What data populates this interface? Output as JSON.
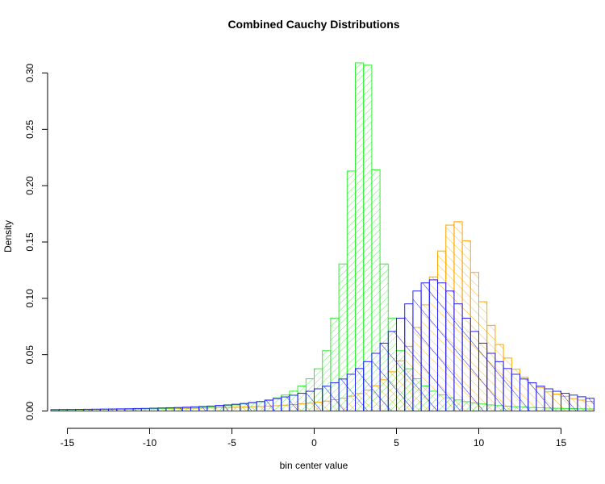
{
  "chart_data": {
    "type": "histogram",
    "title": "Combined Cauchy Distributions",
    "xlabel": "bin center value",
    "ylabel": "Density",
    "xlim": [
      -16.2,
      16.2
    ],
    "ylim": [
      0,
      0.31
    ],
    "x_ticks": [
      -15,
      -10,
      -5,
      0,
      5,
      10,
      15
    ],
    "y_ticks": [
      0.0,
      0.05,
      0.1,
      0.15,
      0.2,
      0.25,
      0.3
    ],
    "y_tick_labels": [
      "0.00",
      "0.05",
      "0.10",
      "0.15",
      "0.20",
      "0.25",
      "0.30"
    ],
    "x_tick_labels": [
      "-15",
      "-10",
      "-5",
      "0",
      "5",
      "10",
      "15"
    ],
    "bin_width": 0.5,
    "grid": false,
    "legend": "none",
    "series": [
      {
        "color": "#ffa500",
        "fill_pattern": "diagonal-hatch-backslash",
        "bins_start": -16,
        "values": [
          0.0012,
          0.0012,
          0.0013,
          0.0013,
          0.0013,
          0.0014,
          0.0015,
          0.0015,
          0.0016,
          0.0016,
          0.0017,
          0.0018,
          0.0019,
          0.002,
          0.0021,
          0.0022,
          0.0023,
          0.0024,
          0.0026,
          0.0027,
          0.0029,
          0.0031,
          0.0033,
          0.0035,
          0.0038,
          0.004,
          0.0044,
          0.0047,
          0.0052,
          0.0057,
          0.0063,
          0.007,
          0.0078,
          0.0088,
          0.01,
          0.0114,
          0.0132,
          0.0155,
          0.0185,
          0.0224,
          0.0277,
          0.0348,
          0.0445,
          0.0574,
          0.0742,
          0.0942,
          0.119,
          0.142,
          0.165,
          0.168,
          0.151,
          0.123,
          0.097,
          0.076,
          0.059,
          0.047,
          0.037,
          0.03,
          0.025,
          0.021,
          0.017,
          0.015,
          0.013,
          0.011,
          0.0097,
          0.0085,
          0.0075
        ]
      },
      {
        "color": "#33ee33",
        "fill_pattern": "diagonal-hatch-slash",
        "bins_start": -16,
        "values": [
          0.001,
          0.0011,
          0.0011,
          0.0012,
          0.0013,
          0.0013,
          0.0014,
          0.0015,
          0.0016,
          0.0017,
          0.0018,
          0.0019,
          0.0021,
          0.0022,
          0.0024,
          0.0026,
          0.0029,
          0.0031,
          0.0035,
          0.0038,
          0.0043,
          0.0048,
          0.0054,
          0.0062,
          0.0071,
          0.0083,
          0.0098,
          0.0117,
          0.0142,
          0.0176,
          0.0222,
          0.0286,
          0.0375,
          0.0535,
          0.0825,
          0.1305,
          0.213,
          0.309,
          0.307,
          0.214,
          0.1305,
          0.0825,
          0.0535,
          0.0375,
          0.0286,
          0.0222,
          0.0176,
          0.0142,
          0.0117,
          0.0098,
          0.0083,
          0.0071,
          0.0062,
          0.0054,
          0.0048,
          0.0043,
          0.0038,
          0.0035,
          0.0031,
          0.0029,
          0.0026,
          0.0024,
          0.0022,
          0.0021,
          0.0019,
          0.0018,
          0.0017
        ]
      },
      {
        "color": "#2222ff",
        "fill_pattern": "diagonal-hatch-backslash-wide",
        "bins_start": -16,
        "values": [
          0.0012,
          0.0013,
          0.0013,
          0.0014,
          0.0015,
          0.0016,
          0.0017,
          0.0018,
          0.0019,
          0.002,
          0.0022,
          0.0023,
          0.0025,
          0.0027,
          0.0029,
          0.0031,
          0.0034,
          0.0037,
          0.004,
          0.0044,
          0.0049,
          0.0054,
          0.006,
          0.0067,
          0.0075,
          0.0084,
          0.0096,
          0.011,
          0.0125,
          0.014,
          0.0157,
          0.0175,
          0.0197,
          0.022,
          0.025,
          0.0284,
          0.0326,
          0.0377,
          0.0438,
          0.0512,
          0.0602,
          0.0706,
          0.0824,
          0.0951,
          0.1065,
          0.1137,
          0.1164,
          0.1137,
          0.1065,
          0.0951,
          0.0824,
          0.0706,
          0.0602,
          0.0512,
          0.0438,
          0.0377,
          0.0326,
          0.0284,
          0.025,
          0.022,
          0.0197,
          0.0175,
          0.0157,
          0.0141,
          0.0126,
          0.0113,
          0.0102
        ]
      }
    ]
  }
}
